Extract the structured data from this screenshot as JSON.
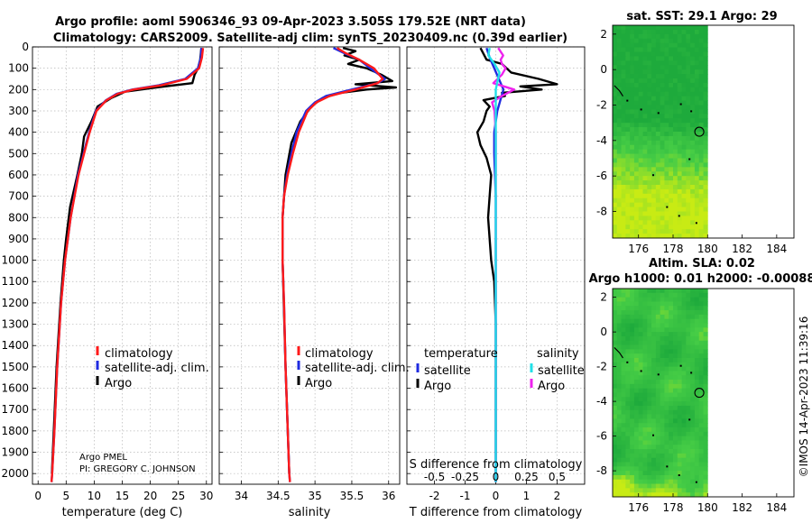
{
  "main_title": "Argo profile: aoml 5906346_93 09-Apr-2023 3.505S 179.52E (NRT data)",
  "sub_title": "Climatology: CARS2009. Satellite-adj clim: synTS_20230409.nc (0.39d earlier)",
  "watermark": "©IMOS 14-Apr-2023 11:39:16",
  "colors": {
    "climatology": "#ff1a1a",
    "satellite": "#1f2be0",
    "argo": "#000000",
    "sal_satellite": "#22e0e8",
    "sal_argo": "#ee22ee"
  },
  "chart_data": [
    {
      "id": "temp",
      "type": "line",
      "xlabel": "temperature (deg C)",
      "xlim": [
        -1,
        31
      ],
      "xticks": [
        0,
        5,
        10,
        15,
        20,
        25,
        30
      ],
      "ylim": [
        0,
        2050
      ],
      "yticks": [
        0,
        100,
        200,
        300,
        400,
        500,
        600,
        700,
        800,
        900,
        1000,
        1100,
        1200,
        1300,
        1400,
        1500,
        1600,
        1700,
        1800,
        1900,
        2000
      ],
      "legend": [
        "climatology",
        "satellite-adj. clim.",
        "Argo"
      ],
      "annotation": [
        "Argo PMEL",
        "PI: GREGORY C. JOHNSON"
      ],
      "series": [
        {
          "name": "climatology",
          "color": "#ff1a1a",
          "depth": [
            5,
            50,
            100,
            150,
            180,
            200,
            220,
            250,
            300,
            400,
            500,
            600,
            800,
            1000,
            1200,
            1500,
            1800,
            2000,
            2040
          ],
          "values": [
            29.4,
            29.2,
            28.7,
            26.5,
            22,
            17,
            14.2,
            12.2,
            10.4,
            9.2,
            8.2,
            7.2,
            5.8,
            4.8,
            4.1,
            3.4,
            2.9,
            2.5,
            2.4
          ]
        },
        {
          "name": "satellite-adj. clim.",
          "color": "#1f2be0",
          "depth": [
            5,
            50,
            100,
            150,
            180,
            200,
            220,
            250,
            300,
            400,
            500,
            600,
            800,
            1000,
            1200,
            1500,
            1800,
            2000,
            2040
          ],
          "values": [
            29.1,
            29.0,
            28.5,
            26.2,
            21.5,
            16.8,
            14.0,
            12.1,
            10.3,
            9.1,
            8.1,
            7.1,
            5.8,
            4.8,
            4.1,
            3.4,
            2.9,
            2.5,
            2.4
          ]
        },
        {
          "name": "Argo",
          "color": "#000000",
          "depth": [
            5,
            60,
            100,
            130,
            170,
            190,
            210,
            240,
            280,
            350,
            420,
            500,
            600,
            750,
            900,
            1000,
            1200,
            1500,
            1800,
            2000
          ],
          "values": [
            29.1,
            28.9,
            28.5,
            27.9,
            27.5,
            21,
            15.5,
            13,
            10.6,
            9.5,
            8.2,
            7.8,
            7,
            5.7,
            5,
            4.6,
            4,
            3.3,
            2.8,
            2.45
          ]
        }
      ]
    },
    {
      "id": "sal",
      "type": "line",
      "xlabel": "salinity",
      "xlim": [
        33.7,
        36.15
      ],
      "xticks": [
        34,
        34.5,
        35,
        35.5,
        36
      ],
      "ylim": [
        0,
        2050
      ],
      "legend": [
        "climatology",
        "satellite-adj. clim.",
        "Argo"
      ],
      "series": [
        {
          "name": "climatology",
          "color": "#ff1a1a",
          "depth": [
            5,
            30,
            60,
            100,
            150,
            170,
            200,
            230,
            260,
            300,
            400,
            500,
            600,
            700,
            800,
            1000,
            1200,
            1500,
            2000,
            2040
          ],
          "values": [
            35.3,
            35.42,
            35.6,
            35.8,
            35.92,
            35.85,
            35.55,
            35.2,
            35.02,
            34.9,
            34.78,
            34.7,
            34.63,
            34.58,
            34.56,
            34.56,
            34.58,
            34.6,
            34.65,
            34.66
          ]
        },
        {
          "name": "satellite-adj. clim.",
          "color": "#1f2be0",
          "depth": [
            5,
            30,
            60,
            100,
            150,
            170,
            200,
            230,
            260,
            300,
            400,
            500,
            600,
            700,
            800,
            1000,
            1200,
            1500,
            2000,
            2040
          ],
          "values": [
            35.25,
            35.4,
            35.6,
            35.75,
            35.95,
            35.85,
            35.5,
            35.15,
            35.0,
            34.88,
            34.75,
            34.68,
            34.62,
            34.58,
            34.56,
            34.56,
            34.58,
            34.6,
            34.65,
            34.66
          ]
        },
        {
          "name": "Argo",
          "color": "#000000",
          "depth": [
            5,
            20,
            40,
            60,
            80,
            100,
            130,
            160,
            175,
            190,
            200,
            215,
            240,
            280,
            350,
            450,
            600,
            800,
            1000,
            1500,
            2000
          ],
          "values": [
            35.38,
            35.55,
            35.4,
            35.6,
            35.45,
            35.7,
            35.9,
            36.05,
            35.55,
            36.1,
            35.7,
            35.35,
            35.1,
            34.95,
            34.8,
            34.68,
            34.6,
            34.56,
            34.56,
            34.6,
            34.65
          ]
        }
      ]
    },
    {
      "id": "diff",
      "type": "line",
      "xlabel": "T difference from climatology",
      "xlim": [
        -2.9,
        2.9
      ],
      "xticks": [
        -2,
        -1,
        0,
        1,
        2
      ],
      "top_xlabel": "S difference from climatology",
      "top_ticks": [
        "-0.5",
        "-0.25",
        "0",
        "0.25",
        "0.5"
      ],
      "top_tick_values": [
        -0.5,
        -0.25,
        0,
        0.25,
        0.5
      ],
      "s_scale": 4,
      "ylim": [
        0,
        2050
      ],
      "legend_headers": [
        "temperature",
        "salinity"
      ],
      "legend": [
        "satellite",
        "Argo",
        "satellite",
        "Argo"
      ],
      "series": [
        {
          "name": "T satellite",
          "color": "#1f2be0",
          "depth": [
            5,
            50,
            100,
            150,
            200,
            250,
            300,
            400,
            500,
            700,
            1000,
            1500,
            2000,
            2040
          ],
          "values": [
            -0.3,
            -0.2,
            -0.05,
            0.1,
            0.25,
            0.15,
            0.05,
            -0.05,
            -0.05,
            0,
            0,
            0,
            0,
            0
          ]
        },
        {
          "name": "T Argo",
          "color": "#000000",
          "depth": [
            5,
            60,
            80,
            120,
            150,
            175,
            185,
            200,
            215,
            230,
            250,
            280,
            300,
            350,
            400,
            460,
            520,
            600,
            700,
            800,
            900,
            1000,
            1100,
            1300,
            1600,
            2000,
            2040
          ],
          "values": [
            -0.5,
            -0.3,
            0.2,
            0.5,
            1.4,
            2.0,
            0.8,
            1.5,
            0.2,
            0.3,
            -0.4,
            -0.2,
            -0.3,
            -0.4,
            -0.6,
            -0.5,
            -0.3,
            -0.15,
            -0.2,
            -0.25,
            -0.2,
            -0.15,
            -0.05,
            0,
            0,
            0,
            0
          ]
        },
        {
          "name": "S satellite",
          "color": "#22e0e8",
          "depth": [
            5,
            40,
            80,
            120,
            200,
            300,
            500,
            1000,
            2040
          ],
          "values": [
            -0.05,
            -0.06,
            -0.01,
            0.03,
            0.0,
            0.0,
            0.0,
            0.0,
            0.0
          ]
        },
        {
          "name": "S Argo",
          "color": "#ee22ee",
          "depth": [
            5,
            40,
            60,
            80,
            100,
            130,
            170,
            200,
            230,
            260,
            300,
            400,
            500,
            800,
            1000,
            1500,
            2040
          ],
          "values": [
            0.02,
            0.06,
            0.04,
            0.05,
            0.08,
            0.05,
            -0.02,
            0.15,
            0.05,
            -0.03,
            -0.01,
            0.0,
            0.0,
            0.0,
            0.0,
            0.0,
            0.0
          ]
        }
      ]
    },
    {
      "id": "sst_map",
      "type": "heatmap",
      "title": "sat. SST: 29.1 Argo: 29",
      "xticks": [
        176,
        178,
        180,
        182,
        184
      ],
      "yticks": [
        2,
        0,
        -2,
        -4,
        -6,
        -8
      ],
      "xlim": [
        174.5,
        185
      ],
      "ylim": [
        -9.5,
        2.5
      ],
      "data_lon_max": 180,
      "argo_position": [
        179.52,
        -3.505
      ]
    },
    {
      "id": "sla_map",
      "type": "heatmap",
      "title": "Altim. SLA: 0.02",
      "title2": "Argo h1000: 0.01 h2000: -0.00088",
      "xticks": [
        176,
        178,
        180,
        182,
        184
      ],
      "yticks": [
        2,
        0,
        -2,
        -4,
        -6,
        -8
      ],
      "xlim": [
        174.5,
        185
      ],
      "ylim": [
        -9.5,
        2.5
      ],
      "data_lon_max": 180,
      "argo_position": [
        179.52,
        -3.505
      ]
    }
  ]
}
